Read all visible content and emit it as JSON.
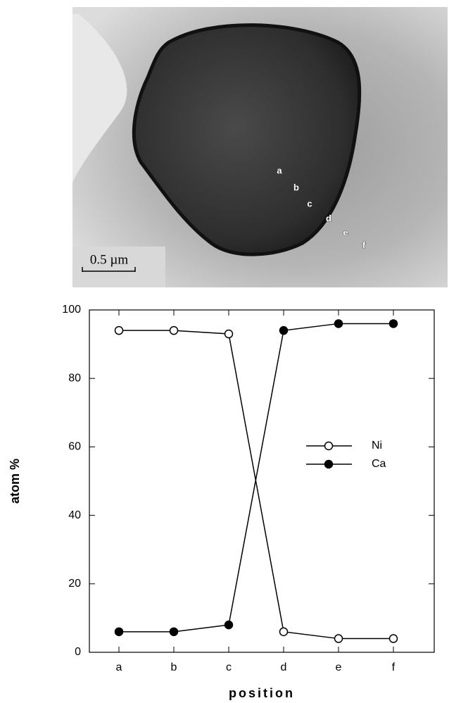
{
  "micrograph": {
    "scale_bar": "0.5 µm",
    "labels": [
      "a",
      "b",
      "c",
      "d",
      "e",
      "f"
    ]
  },
  "chart_data": {
    "type": "line",
    "xlabel": "position",
    "ylabel": "atom  %",
    "categories": [
      "a",
      "b",
      "c",
      "d",
      "e",
      "f"
    ],
    "series": [
      {
        "name": "Ni",
        "color": "#000000",
        "marker": "open",
        "values": [
          94,
          94,
          93,
          6,
          4,
          4
        ]
      },
      {
        "name": "Ca",
        "color": "#000000",
        "marker": "filled",
        "values": [
          6,
          6,
          8,
          94,
          96,
          96
        ]
      }
    ],
    "ylim": [
      0,
      100
    ],
    "yticks": [
      0,
      20,
      40,
      60,
      80,
      100
    ],
    "grid": false,
    "legend": "right"
  }
}
